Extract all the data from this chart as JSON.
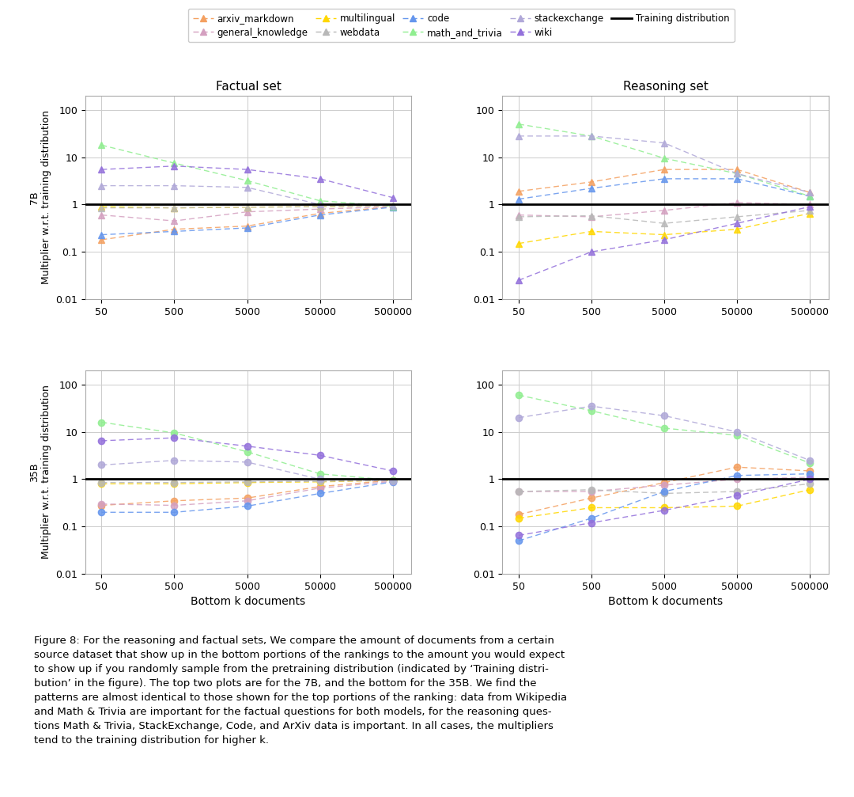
{
  "x_values": [
    50,
    500,
    5000,
    50000,
    500000
  ],
  "series": {
    "arxiv_markdown": {
      "color": "#F4A060",
      "label": "arxiv_markdown",
      "data": {
        "7B_factual": [
          0.18,
          0.3,
          0.35,
          0.65,
          0.9
        ],
        "7B_reasoning": [
          1.9,
          3.0,
          5.5,
          5.5,
          1.8
        ],
        "35B_factual": [
          0.28,
          0.35,
          0.4,
          0.7,
          0.95
        ],
        "35B_reasoning": [
          0.18,
          0.4,
          0.85,
          1.8,
          1.5
        ]
      }
    },
    "general_knowledge": {
      "color": "#D4A0C0",
      "label": "general_knowledge",
      "data": {
        "7B_factual": [
          0.6,
          0.45,
          0.7,
          0.8,
          0.9
        ],
        "7B_reasoning": [
          0.6,
          0.55,
          0.75,
          1.1,
          1.0
        ],
        "35B_factual": [
          0.3,
          0.28,
          0.35,
          0.65,
          0.9
        ],
        "35B_reasoning": [
          0.55,
          0.55,
          0.75,
          1.0,
          1.1
        ]
      }
    },
    "multilingual": {
      "color": "#FFD700",
      "label": "multilingual",
      "data": {
        "7B_factual": [
          0.9,
          0.85,
          0.88,
          0.9,
          0.95
        ],
        "7B_reasoning": [
          0.15,
          0.27,
          0.23,
          0.3,
          0.65
        ],
        "35B_factual": [
          0.8,
          0.8,
          0.85,
          0.88,
          0.95
        ],
        "35B_reasoning": [
          0.15,
          0.25,
          0.25,
          0.27,
          0.6
        ]
      }
    },
    "webdata": {
      "color": "#B8B8B8",
      "label": "webdata",
      "data": {
        "7B_factual": [
          0.85,
          0.85,
          0.88,
          0.9,
          0.95
        ],
        "7B_reasoning": [
          0.55,
          0.58,
          0.4,
          0.55,
          0.75
        ],
        "35B_factual": [
          0.85,
          0.85,
          0.88,
          0.9,
          0.95
        ],
        "35B_reasoning": [
          0.55,
          0.6,
          0.5,
          0.55,
          0.8
        ]
      }
    },
    "code": {
      "color": "#6495ED",
      "label": "code",
      "data": {
        "7B_factual": [
          0.23,
          0.27,
          0.32,
          0.6,
          0.88
        ],
        "7B_reasoning": [
          1.3,
          2.2,
          3.5,
          3.5,
          1.5
        ],
        "35B_factual": [
          0.2,
          0.2,
          0.27,
          0.5,
          0.88
        ],
        "35B_reasoning": [
          0.05,
          0.15,
          0.55,
          1.2,
          1.3
        ]
      }
    },
    "math_and_trivia": {
      "color": "#90EE90",
      "label": "math_and_trivia",
      "data": {
        "7B_factual": [
          18.0,
          7.5,
          3.2,
          1.2,
          0.92
        ],
        "7B_reasoning": [
          50.0,
          28.0,
          9.5,
          4.5,
          1.5
        ],
        "35B_factual": [
          16.0,
          9.5,
          3.8,
          1.3,
          0.95
        ],
        "35B_reasoning": [
          60.0,
          28.0,
          12.0,
          8.5,
          2.2
        ]
      }
    },
    "stackexchange": {
      "color": "#B0A8D8",
      "label": "stackexchange",
      "data": {
        "7B_factual": [
          2.5,
          2.5,
          2.3,
          1.0,
          0.95
        ],
        "7B_reasoning": [
          28.0,
          28.0,
          20.0,
          4.5,
          1.8
        ],
        "35B_factual": [
          2.0,
          2.5,
          2.3,
          1.0,
          0.92
        ],
        "35B_reasoning": [
          20.0,
          35.0,
          22.0,
          10.0,
          2.5
        ]
      }
    },
    "wiki": {
      "color": "#9370DB",
      "label": "wiki",
      "data": {
        "7B_factual": [
          5.5,
          6.5,
          5.5,
          3.5,
          1.4
        ],
        "7B_reasoning": [
          0.025,
          0.1,
          0.18,
          0.4,
          0.9
        ],
        "35B_factual": [
          6.5,
          7.5,
          5.0,
          3.2,
          1.5
        ],
        "35B_reasoning": [
          0.065,
          0.12,
          0.22,
          0.45,
          1.0
        ]
      }
    }
  },
  "subplot_titles": [
    "Factual set",
    "Reasoning set"
  ],
  "row_labels": [
    "7B",
    "35B"
  ],
  "ylabel": "Multiplier w.r.t. training distribution",
  "xlabel": "Bottom k documents",
  "ylim": [
    0.01,
    200
  ],
  "figsize": [
    10.8,
    10.07
  ],
  "legend_order": [
    "arxiv_markdown",
    "general_knowledge",
    "multilingual",
    "webdata",
    "code",
    "math_and_trivia",
    "stackexchange",
    "wiki"
  ],
  "training_dist_color": "black",
  "training_dist_label": "Training distribution",
  "marker_7B": "^",
  "marker_35B": "o"
}
